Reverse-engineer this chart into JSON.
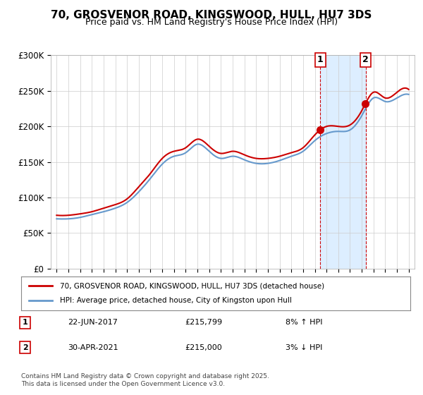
{
  "title": "70, GROSVENOR ROAD, KINGSWOOD, HULL, HU7 3DS",
  "subtitle": "Price paid vs. HM Land Registry's House Price Index (HPI)",
  "legend_line1": "70, GROSVENOR ROAD, KINGSWOOD, HULL, HU7 3DS (detached house)",
  "legend_line2": "HPI: Average price, detached house, City of Kingston upon Hull",
  "annotation1_label": "1",
  "annotation1_date": "22-JUN-2017",
  "annotation1_price": "£215,799",
  "annotation1_pct": "8% ↑ HPI",
  "annotation2_label": "2",
  "annotation2_date": "30-APR-2021",
  "annotation2_price": "£215,000",
  "annotation2_pct": "3% ↓ HPI",
  "footnote": "Contains HM Land Registry data © Crown copyright and database right 2025.\nThis data is licensed under the Open Government Licence v3.0.",
  "red_color": "#cc0000",
  "blue_color": "#6699cc",
  "marker1_x": 2017.47,
  "marker2_x": 2021.33,
  "ylim_min": 0,
  "ylim_max": 300000,
  "xlim_min": 1994.5,
  "xlim_max": 2025.5,
  "background_color": "#ffffff",
  "plot_bg_color": "#ffffff",
  "shaded_color": "#ddeeff"
}
